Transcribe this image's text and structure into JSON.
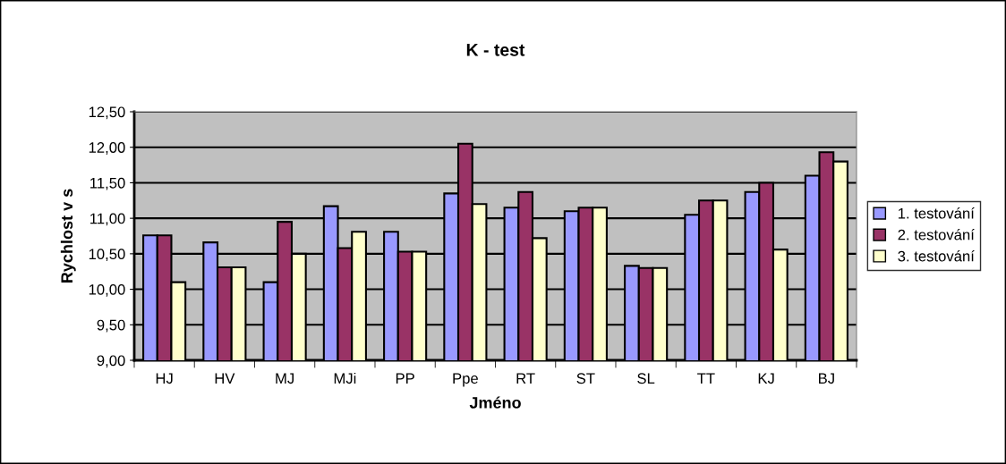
{
  "chart_data": {
    "type": "bar",
    "title": "K - test",
    "xlabel": "Jméno",
    "ylabel": "Rychlost v s",
    "categories": [
      "HJ",
      "HV",
      "MJ",
      "MJi",
      "PP",
      "Ppe",
      "RT",
      "ST",
      "SL",
      "TT",
      "KJ",
      "BJ"
    ],
    "series": [
      {
        "name": "1. testování",
        "color": "#9999ff",
        "values": [
          10.76,
          10.66,
          10.1,
          11.17,
          10.81,
          11.35,
          11.15,
          11.1,
          10.33,
          11.05,
          11.37,
          11.6
        ]
      },
      {
        "name": "2. testování",
        "color": "#993366",
        "values": [
          10.76,
          10.31,
          10.95,
          10.58,
          10.53,
          12.05,
          11.37,
          11.15,
          10.3,
          11.25,
          11.5,
          11.93
        ]
      },
      {
        "name": "3. testování",
        "color": "#ffffcc",
        "values": [
          10.1,
          10.31,
          10.5,
          10.81,
          10.53,
          11.2,
          10.72,
          11.15,
          10.3,
          11.25,
          10.56,
          11.8
        ]
      }
    ],
    "ylim": [
      9,
      12.5
    ],
    "yticks": [
      {
        "value": 9,
        "label": "9,00"
      },
      {
        "value": 9.5,
        "label": "9,50"
      },
      {
        "value": 10,
        "label": "10,00"
      },
      {
        "value": 10.5,
        "label": "10,50"
      },
      {
        "value": 11,
        "label": "11,00"
      },
      {
        "value": 11.5,
        "label": "11,50"
      },
      {
        "value": 12,
        "label": "12,00"
      },
      {
        "value": 12.5,
        "label": "12,50"
      }
    ],
    "grid": "y",
    "legend": "right"
  }
}
